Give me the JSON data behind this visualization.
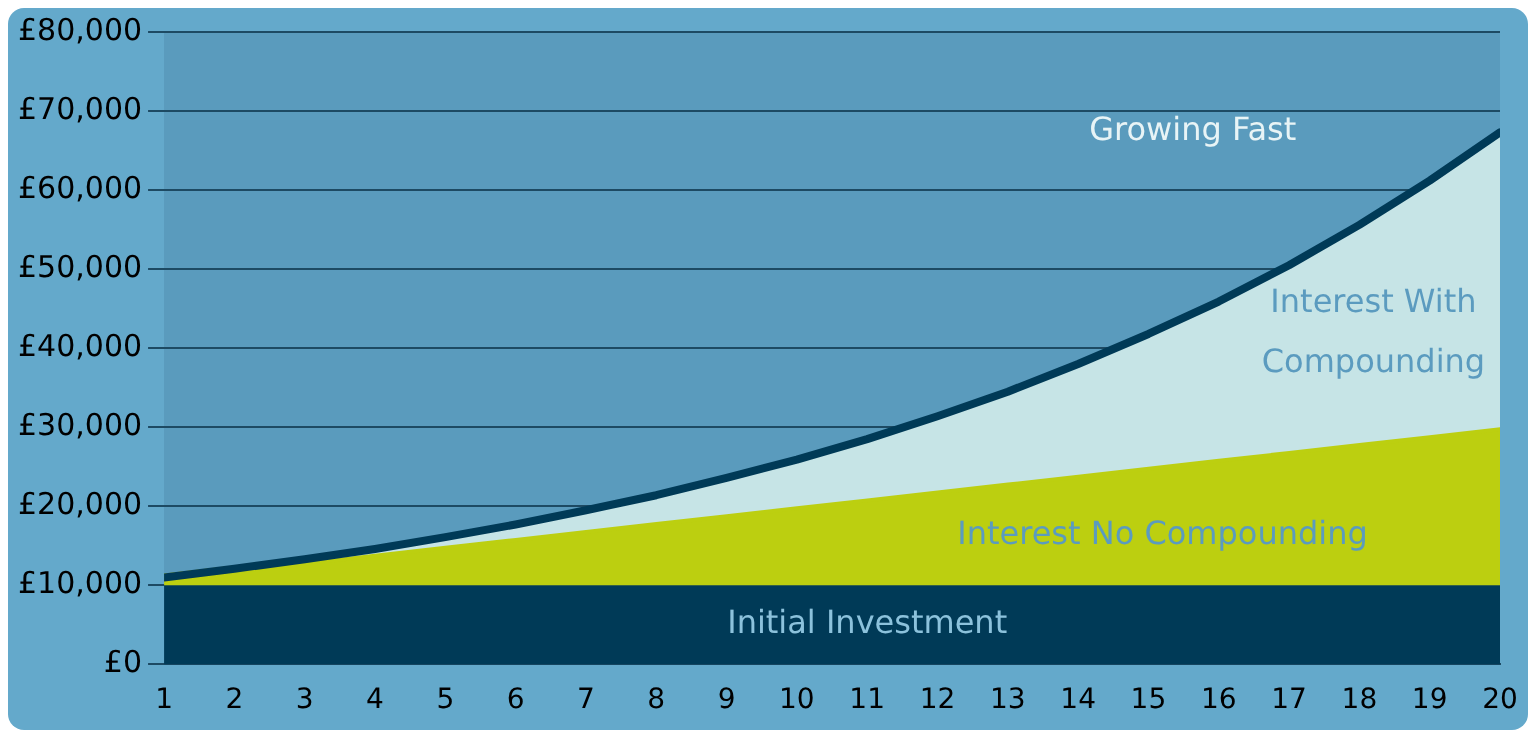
{
  "chart_data": {
    "type": "area",
    "x": [
      1,
      2,
      3,
      4,
      5,
      6,
      7,
      8,
      9,
      10,
      11,
      12,
      13,
      14,
      15,
      16,
      17,
      18,
      19,
      20
    ],
    "xlim": [
      1,
      20
    ],
    "xticks": [
      1,
      2,
      3,
      4,
      5,
      6,
      7,
      8,
      9,
      10,
      11,
      12,
      13,
      14,
      15,
      16,
      17,
      18,
      19,
      20
    ],
    "series": [
      {
        "name": "Initial Investment",
        "color": "#003a57",
        "values": [
          10000,
          10000,
          10000,
          10000,
          10000,
          10000,
          10000,
          10000,
          10000,
          10000,
          10000,
          10000,
          10000,
          10000,
          10000,
          10000,
          10000,
          10000,
          10000,
          10000
        ]
      },
      {
        "name": "Interest No Compounding",
        "color": "#bccf10",
        "values": [
          11000,
          12000,
          13000,
          14000,
          15000,
          16000,
          17000,
          18000,
          19000,
          20000,
          21000,
          22000,
          23000,
          24000,
          25000,
          26000,
          27000,
          28000,
          29000,
          30000
        ]
      },
      {
        "name": "Interest With Compounding",
        "color": "#c6e4e6",
        "values": [
          11000,
          12100,
          13300,
          14600,
          16100,
          17700,
          19500,
          21400,
          23600,
          25900,
          28500,
          31400,
          34500,
          38000,
          41800,
          45900,
          50500,
          55600,
          61200,
          67300
        ]
      }
    ],
    "annotations": [
      "Growing Fast"
    ],
    "ylim": [
      0,
      80000
    ],
    "yticks": [
      {
        "value": 0,
        "label": "£0"
      },
      {
        "value": 10000,
        "label": "£10,000"
      },
      {
        "value": 20000,
        "label": "£20,000"
      },
      {
        "value": 30000,
        "label": "£30,000"
      },
      {
        "value": 40000,
        "label": "£40,000"
      },
      {
        "value": 50000,
        "label": "£50,000"
      },
      {
        "value": 60000,
        "label": "£60,000"
      },
      {
        "value": 70000,
        "label": "£70,000"
      },
      {
        "value": 80000,
        "label": "£80,000"
      }
    ],
    "grid": "y",
    "legend": false
  }
}
